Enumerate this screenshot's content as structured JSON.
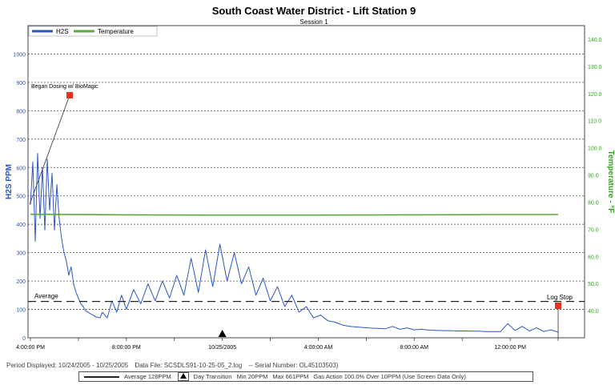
{
  "chart_data": {
    "type": "line",
    "title": "South Coast Water District - Lift Station 9",
    "subtitle": "Session 1",
    "ylabel": "H2S PPM",
    "y2label": "Temperature - °F",
    "ylim": [
      0,
      1100
    ],
    "y2lim": [
      30,
      145
    ],
    "y_ticks": [
      "0",
      "100",
      "200",
      "300",
      "400",
      "500",
      "600",
      "700",
      "800",
      "900",
      "1000"
    ],
    "y2_ticks": [
      "40.0",
      "50.0",
      "60.0",
      "70.0",
      "80.0",
      "90.0",
      "100.0",
      "110.0",
      "120.0",
      "130.0",
      "140.0"
    ],
    "x_tick_labels": [
      "4:00:00 PM",
      "8:00:00 PM",
      "10/25/2005",
      "4:00:00 AM",
      "8:00:00 AM",
      "12:00:00 PM"
    ],
    "legend": [
      "H2S",
      "Temperature"
    ],
    "colors": {
      "h2s": "#2a56c6",
      "temperature": "#5aaa3c",
      "marker": "#e8321e",
      "grid": "#555555"
    },
    "average_label": "Average",
    "average_value": 128,
    "annotations": [
      {
        "text": "Began Dosing w/ BioMagic"
      },
      {
        "text": "Log Stop"
      }
    ],
    "series": [
      {
        "name": "H2S",
        "axis": "left",
        "x_hours": [
          0,
          0.1,
          0.2,
          0.3,
          0.4,
          0.5,
          0.6,
          0.7,
          0.8,
          0.9,
          1.0,
          1.1,
          1.2,
          1.3,
          1.4,
          1.5,
          1.6,
          1.7,
          1.8,
          1.9,
          2.0,
          2.1,
          2.2,
          2.3,
          2.4,
          2.5,
          2.6,
          2.7,
          2.8,
          2.9,
          3.0,
          3.2,
          3.4,
          3.6,
          3.8,
          4.0,
          4.3,
          4.6,
          4.9,
          5.2,
          5.5,
          5.8,
          6.1,
          6.4,
          6.7,
          7.0,
          7.3,
          7.6,
          7.9,
          8.2,
          8.5,
          8.8,
          9.1,
          9.4,
          9.7,
          10.0,
          10.3,
          10.6,
          10.9,
          11.2,
          11.5,
          11.8,
          12.1,
          12.4,
          12.7,
          13.0,
          13.3,
          13.6,
          13.9,
          14.2,
          14.5,
          14.8,
          15.1,
          15.4,
          15.7,
          16.0,
          16.3,
          16.6,
          16.9,
          17.2,
          17.5,
          17.8,
          18.1,
          18.4,
          18.7,
          19.0,
          19.3,
          19.6,
          19.9,
          20.2,
          20.5,
          20.8,
          21.1,
          21.4,
          21.7,
          22.0
        ],
        "values": [
          470,
          620,
          340,
          650,
          420,
          600,
          380,
          630,
          450,
          580,
          380,
          540,
          420,
          350,
          300,
          270,
          220,
          250,
          190,
          160,
          140,
          120,
          110,
          95,
          90,
          85,
          80,
          75,
          72,
          70,
          90,
          70,
          130,
          90,
          150,
          100,
          170,
          120,
          190,
          130,
          200,
          140,
          220,
          150,
          280,
          160,
          310,
          180,
          330,
          200,
          300,
          190,
          250,
          150,
          210,
          130,
          180,
          110,
          150,
          90,
          110,
          70,
          80,
          60,
          55,
          45,
          40,
          38,
          36,
          34,
          33,
          32,
          40,
          30,
          35,
          28,
          30,
          27,
          26,
          25,
          25,
          24,
          24,
          23,
          23,
          22,
          22,
          22,
          50,
          26,
          40,
          24,
          35,
          22,
          28,
          20
        ]
      },
      {
        "name": "Temperature",
        "axis": "right",
        "x_hours": [
          0,
          4,
          8,
          12,
          16,
          20,
          22
        ],
        "values": [
          75.5,
          75.3,
          75.2,
          75.2,
          75.3,
          75.4,
          75.4
        ]
      }
    ],
    "x_range_hours": [
      0,
      22
    ],
    "grid": true,
    "legend_position": "top-left"
  },
  "footer": {
    "period": "Period Displayed: 10/24/2005 - 10/25/2005",
    "data_file": "Data File: SCSDLS91-10-25-05_2.log",
    "serial": "--   Serial Number: OL45103503)",
    "legend_average": "Average   128PPM",
    "legend_day": "Day Transition",
    "legend_min": "Min    20PPM",
    "legend_max": "Max    661PPM",
    "legend_gas": "Gas Action 100.0% Over   10PPM  (Use Screen Data Only)"
  }
}
